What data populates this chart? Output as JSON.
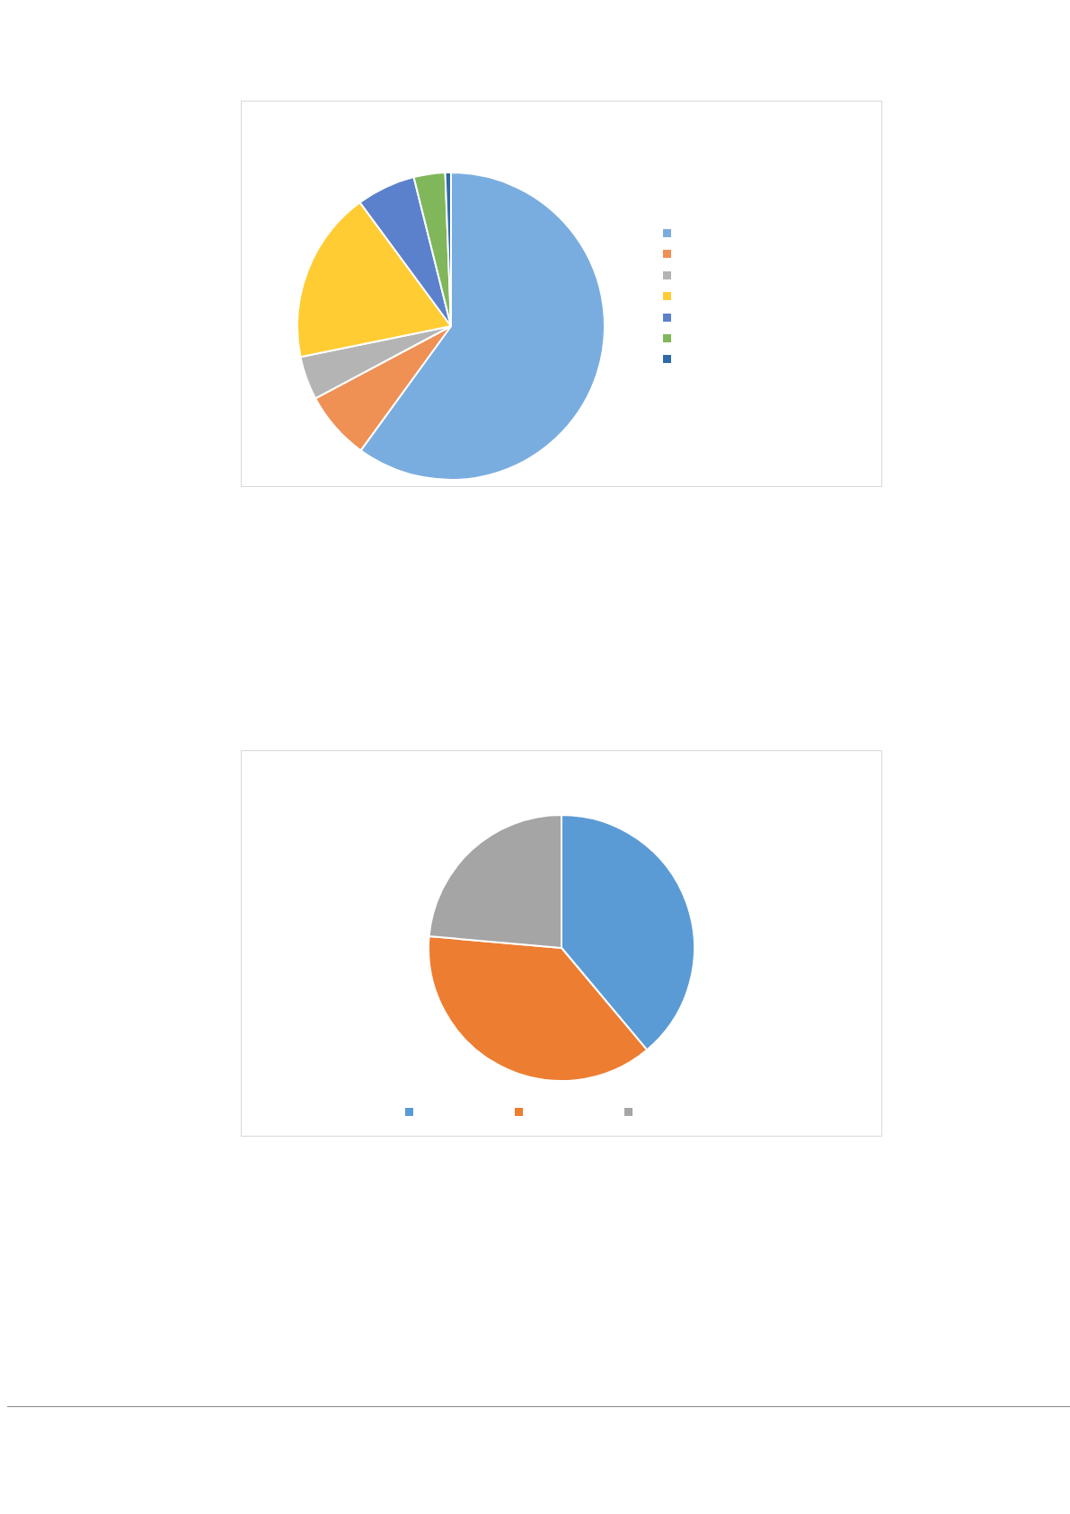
{
  "chart_data": [
    {
      "type": "pie",
      "categories": [
        null,
        null,
        null,
        null,
        null,
        null,
        null
      ],
      "values": [
        60,
        7.2,
        4.6,
        18.1,
        6.2,
        3.3,
        0.6
      ],
      "colors": [
        "#7aaddf",
        "#ef9055",
        "#b4b4b4",
        "#ffcc33",
        "#5b80cc",
        "#80b75a",
        "#2e6aa5"
      ]
    },
    {
      "type": "pie",
      "categories": [
        null,
        null,
        null
      ],
      "values": [
        38.9,
        37.5,
        23.6
      ],
      "colors": [
        "#5b9bd5",
        "#ed7d31",
        "#a5a5a5"
      ]
    }
  ]
}
